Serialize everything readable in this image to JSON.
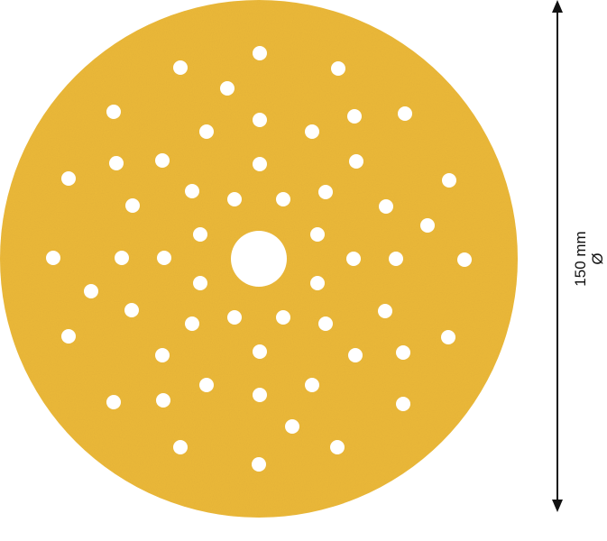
{
  "product": {
    "disc_color": "#ECB93A",
    "hole_color": "#FFFFFF",
    "center_hole": true,
    "small_hole_count": 56
  },
  "dimension": {
    "value_label": "150 mm",
    "symbol": "Ø",
    "arrow_color": "#111111"
  }
}
